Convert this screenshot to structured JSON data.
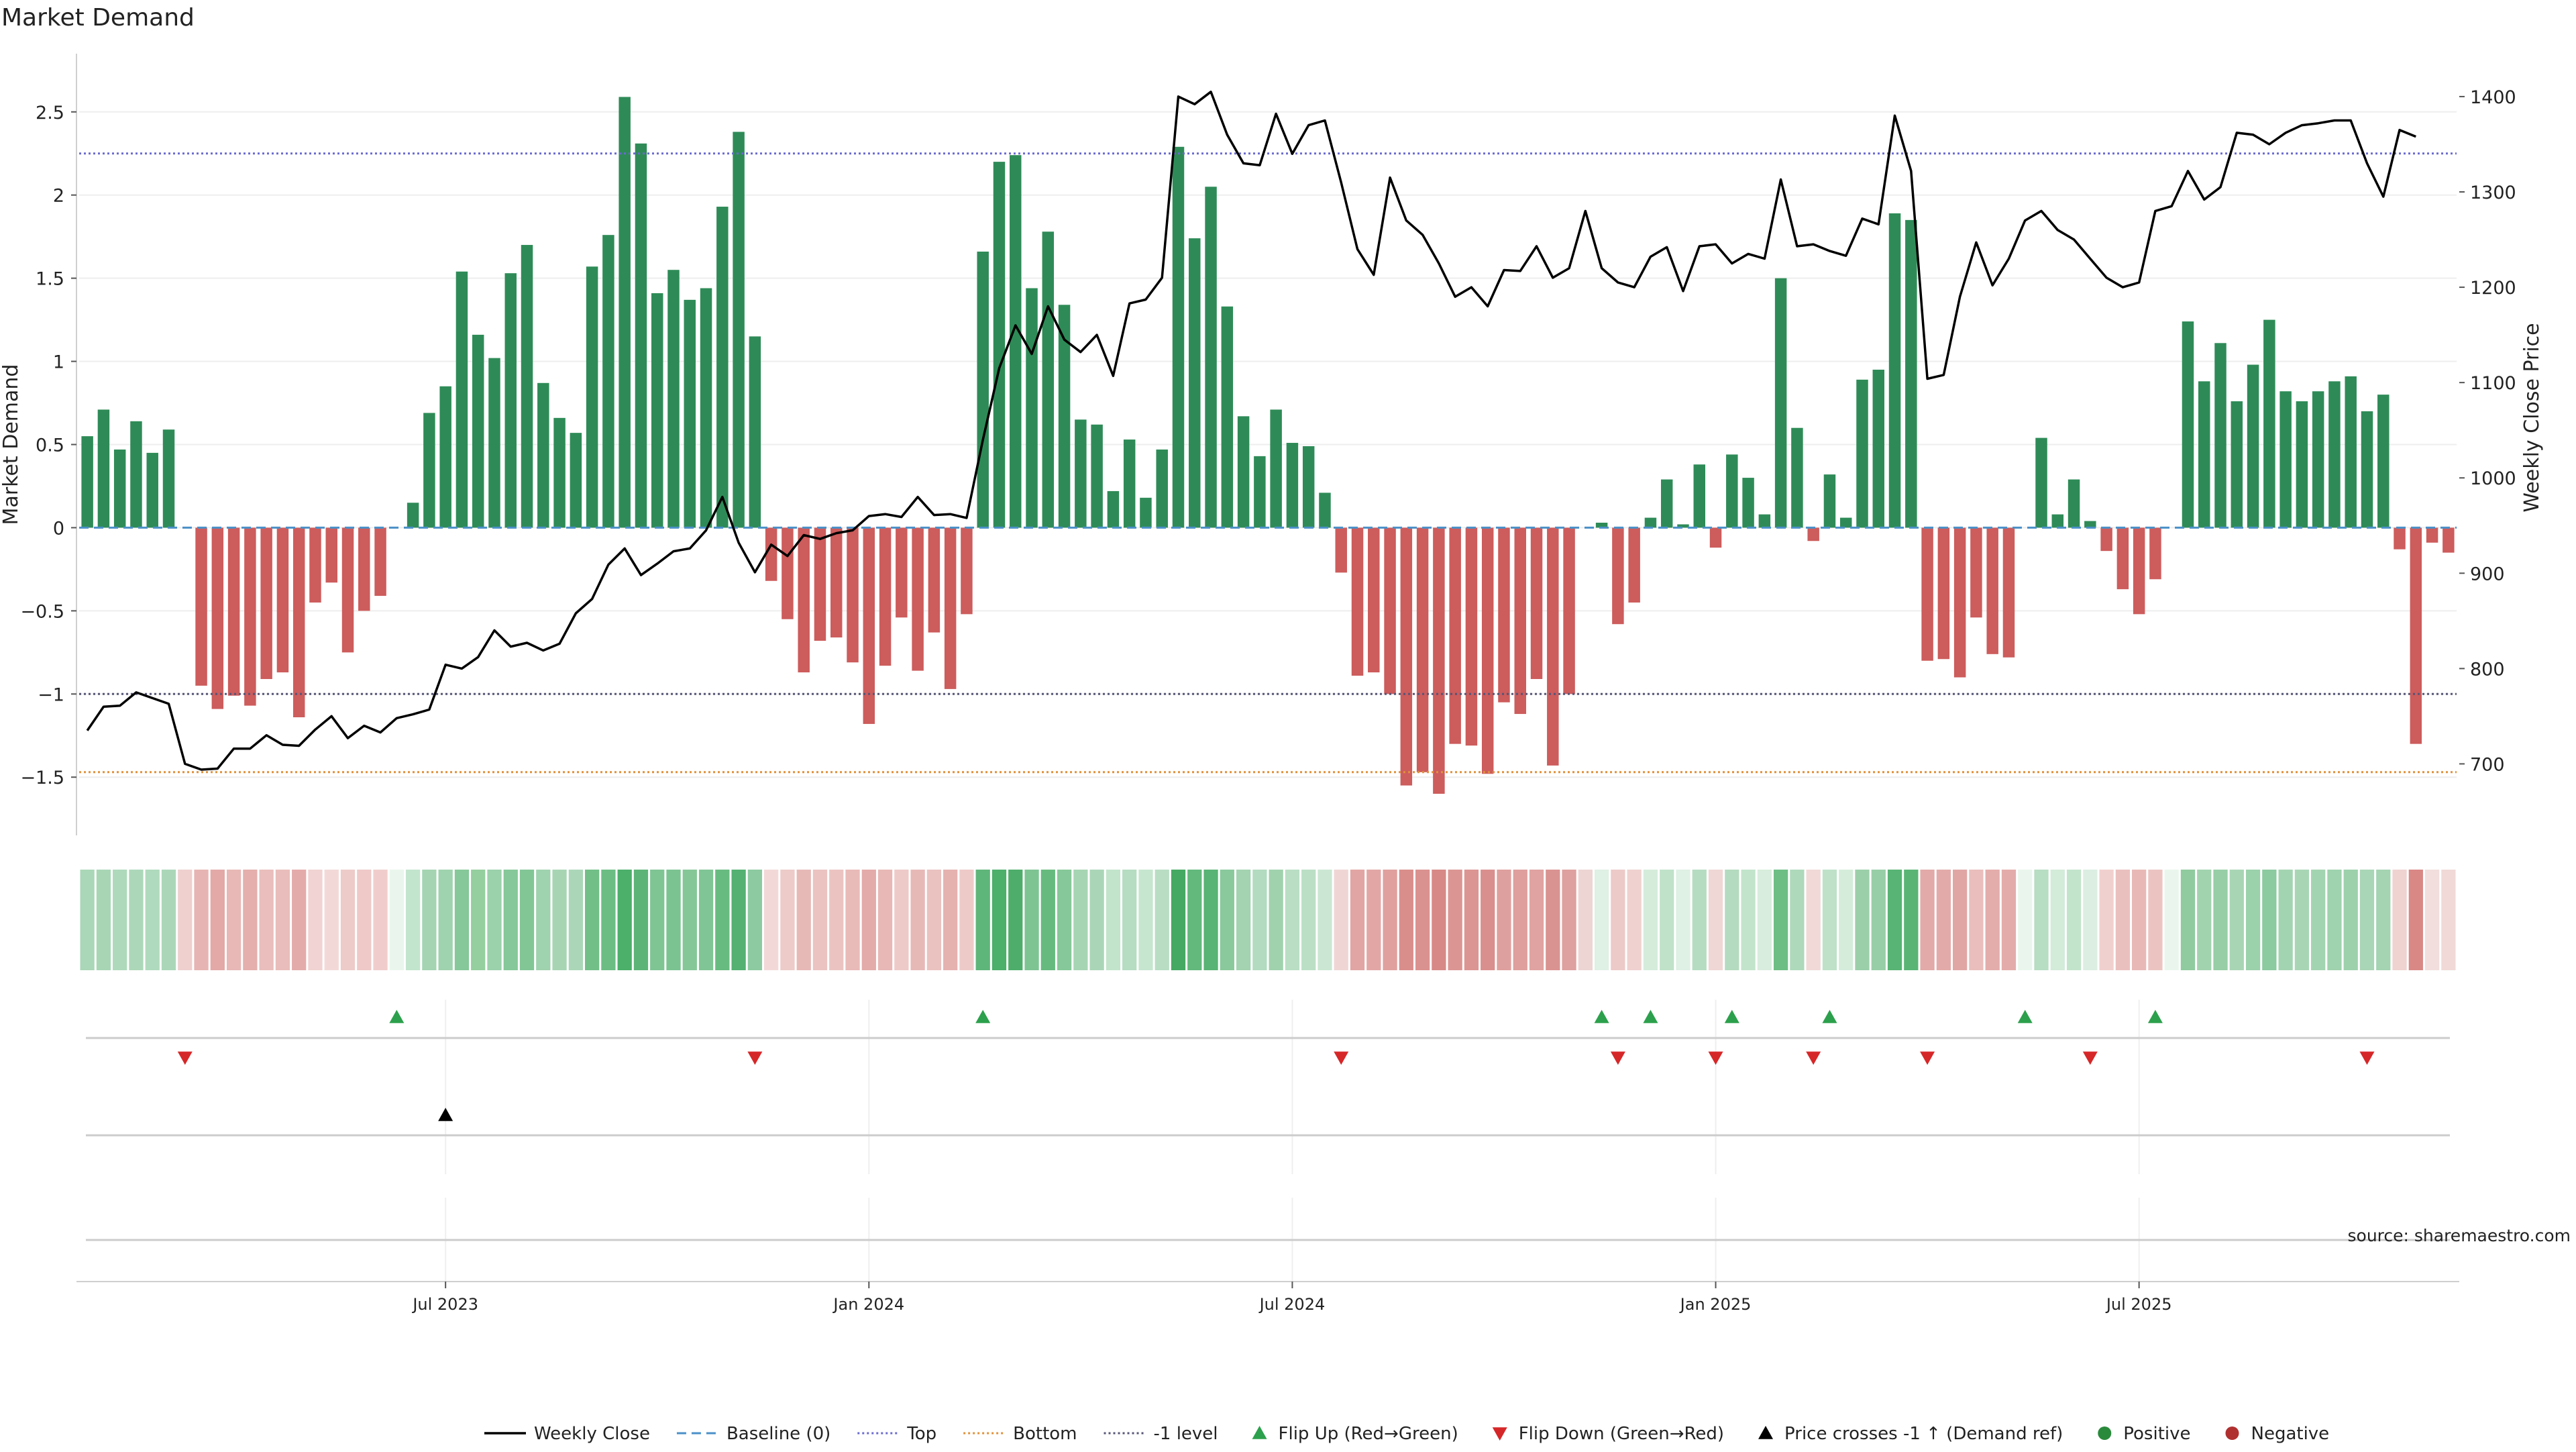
{
  "chart_data": {
    "type": "bar",
    "title": "Market Demand",
    "ylabel": "Market Demand",
    "y2label": "Weekly Close Price",
    "ylim": [
      -1.85,
      2.85
    ],
    "y2lim": [
      625,
      1445
    ],
    "yticks": [
      "2.5",
      "2",
      "1.5",
      "1",
      "0.5",
      "0",
      "−0.5",
      "−1",
      "−1.5"
    ],
    "ytick_values": [
      2.5,
      2,
      1.5,
      1,
      0.5,
      0,
      -0.5,
      -1,
      -1.5
    ],
    "y2ticks": [
      "1400",
      "1300",
      "1200",
      "1100",
      "1000",
      "900",
      "800",
      "700"
    ],
    "y2tick_values": [
      1400,
      1300,
      1200,
      1100,
      1000,
      900,
      800,
      700
    ],
    "xticks": [
      "Jul 2023",
      "Jan 2024",
      "Jul 2024",
      "Jan 2025",
      "Jul 2025"
    ],
    "xtick_index": [
      22,
      48,
      74,
      100,
      126
    ],
    "reference_lines": [
      {
        "name": "Top",
        "value": 2.25,
        "color": "#6a6ad0",
        "dash": "3,4"
      },
      {
        "name": "-1 level",
        "value": -1.0,
        "color": "#555577",
        "dash": "3,4"
      },
      {
        "name": "Bottom",
        "value": -1.47,
        "color": "#e0913a",
        "dash": "3,4"
      }
    ],
    "demand": [
      0.55,
      0.71,
      0.47,
      0.64,
      0.45,
      0.59,
      0,
      -0.95,
      -1.09,
      -1.01,
      -1.07,
      -0.91,
      -0.87,
      -1.14,
      -0.45,
      -0.33,
      -0.75,
      -0.5,
      -0.41,
      0,
      0.15,
      0.69,
      0.85,
      1.54,
      1.16,
      1.02,
      1.53,
      1.7,
      0.87,
      0.66,
      0.57,
      1.57,
      1.76,
      2.59,
      2.31,
      1.41,
      1.55,
      1.37,
      1.44,
      1.93,
      2.38,
      1.15,
      -0.32,
      -0.55,
      -0.87,
      -0.68,
      -0.66,
      -0.81,
      -1.18,
      -0.83,
      -0.54,
      -0.86,
      -0.63,
      -0.97,
      -0.52,
      1.66,
      2.2,
      2.24,
      1.44,
      1.78,
      1.34,
      0.65,
      0.62,
      0.22,
      0.53,
      0.18,
      0.47,
      2.29,
      1.74,
      2.05,
      1.33,
      0.67,
      0.43,
      0.71,
      0.51,
      0.49,
      0.21,
      -0.27,
      -0.89,
      -0.87,
      -1.0,
      -1.55,
      -1.47,
      -1.6,
      -1.3,
      -1.31,
      -1.48,
      -1.05,
      -1.12,
      -0.91,
      -1.43,
      -1.0,
      0,
      0.03,
      -0.58,
      -0.45,
      0.06,
      0.29,
      0.02,
      0.38,
      -0.12,
      0.44,
      0.3,
      0.08,
      1.5,
      0.6,
      -0.08,
      0.32,
      0.06,
      0.89,
      0.95,
      1.89,
      1.85,
      -0.8,
      -0.79,
      -0.9,
      -0.54,
      -0.76,
      -0.78,
      0,
      0.54,
      0.08,
      0.29,
      0.04,
      -0.14,
      -0.37,
      -0.52,
      -0.31,
      0,
      1.24,
      0.88,
      1.11,
      0.76,
      0.98,
      1.25,
      0.82,
      0.76,
      0.82,
      0.88,
      0.91,
      0.7,
      0.8,
      -0.13,
      -1.3,
      -0.09,
      -0.15
    ],
    "close": [
      735,
      760,
      761,
      775,
      769,
      763,
      700,
      694,
      695,
      716,
      716,
      730,
      720,
      719,
      736,
      750,
      727,
      740,
      733,
      748,
      752,
      757,
      804,
      800,
      812,
      840,
      823,
      827,
      819,
      826,
      858,
      873,
      909,
      926,
      898,
      910,
      923,
      926,
      945,
      980,
      932,
      901,
      930,
      918,
      940,
      936,
      942,
      945,
      960,
      962,
      959,
      980,
      961,
      962,
      958,
      1040,
      1115,
      1160,
      1130,
      1180,
      1145,
      1132,
      1150,
      1107,
      1183,
      1187,
      1210,
      1400,
      1392,
      1405,
      1360,
      1330,
      1328,
      1382,
      1340,
      1370,
      1375,
      1310,
      1240,
      1213,
      1315,
      1270,
      1255,
      1225,
      1190,
      1200,
      1180,
      1218,
      1217,
      1243,
      1210,
      1220,
      1280,
      1220,
      1205,
      1200,
      1232,
      1242,
      1196,
      1243,
      1245,
      1225,
      1235,
      1230,
      1313,
      1243,
      1245,
      1238,
      1233,
      1272,
      1266,
      1380,
      1322,
      1104,
      1108,
      1190,
      1247,
      1202,
      1230,
      1270,
      1280,
      1260,
      1250,
      1230,
      1210,
      1200,
      1205,
      1280,
      1285,
      1322,
      1292,
      1305,
      1362,
      1360,
      1350,
      1362,
      1370,
      1372,
      1375,
      1375,
      1330,
      1295,
      1365,
      1358
    ],
    "heat_colors": [
      "#aad7b7",
      "#a8d6b5",
      "#aed9bb",
      "#acd8b9",
      "#b0dabd",
      "#abd7b8",
      "#efd0cf",
      "#e6b5b3",
      "#e2a9a7",
      "#e7b8b6",
      "#e4afac",
      "#e9bebc",
      "#e9bdbb",
      "#e3abaa",
      "#f0d3d2",
      "#f2d9d8",
      "#edcbc9",
      "#eec9c8",
      "#f0cdcc",
      "#eaf6ed",
      "#c2e5cd",
      "#a4d4b2",
      "#9fd2ae",
      "#86c899",
      "#95ce9f",
      "#9bd1ab",
      "#86c899",
      "#82c696",
      "#9fd2ae",
      "#a7d5b4",
      "#abd7b8",
      "#72bf88",
      "#6cbd84",
      "#4caf6a",
      "#5cb577",
      "#7fc594",
      "#7bc391",
      "#85c797",
      "#80c595",
      "#68bb80",
      "#54b172",
      "#8dcaa1",
      "#f2d9d8",
      "#eccbc9",
      "#e6b9b7",
      "#ebc3c1",
      "#ebc4c2",
      "#e8bab8",
      "#e3aba9",
      "#e7b8b6",
      "#edcac8",
      "#e6b9b7",
      "#eac2c0",
      "#e5b2b0",
      "#edcac8",
      "#5fb67a",
      "#4caf6a",
      "#4ead6b",
      "#7ec493",
      "#66ba7e",
      "#86c899",
      "#a6d5b3",
      "#aad6b7",
      "#c2e4cb",
      "#b6dcc2",
      "#c6e6cf",
      "#b8ddc3",
      "#45a963",
      "#63b87c",
      "#58b474",
      "#8ac99c",
      "#a3d3b0",
      "#b2dbbf",
      "#a0d2ae",
      "#b9dec4",
      "#bbdfc5",
      "#cbe7d3",
      "#efd6d5",
      "#e1a5a3",
      "#e2a7a5",
      "#dfa09e",
      "#d98e8c",
      "#da9290",
      "#d78987",
      "#db9694",
      "#db9593",
      "#d98f8d",
      "#dea09e",
      "#de9f9d",
      "#e0a3a1",
      "#d99391",
      "#dea19f",
      "#ecd5d3",
      "#dff0e4",
      "#eccac8",
      "#efd1cf",
      "#d5ecdb",
      "#bfe2c9",
      "#dff0e4",
      "#b5dcc1",
      "#efd7d5",
      "#b4dbbf",
      "#c2e4cb",
      "#d8eddd",
      "#6dbe85",
      "#aed9bb",
      "#f0d9d7",
      "#bee1c8",
      "#d5ecdb",
      "#9bcfa9",
      "#98cea7",
      "#58b474",
      "#5ab575",
      "#e2aaa8",
      "#e2aba9",
      "#e0a6a4",
      "#e9bebc",
      "#e3adab",
      "#e3acaa",
      "#eaf6ed",
      "#b7ddc2",
      "#d3ebd9",
      "#c2e4cb",
      "#dbeee1",
      "#f0d0ce",
      "#eac0be",
      "#e8b8b6",
      "#ebc4c2",
      "#eaf6ed",
      "#8fcb9f",
      "#a2d3af",
      "#97cea6",
      "#a8d6b5",
      "#9bd1ab",
      "#8ccaa0",
      "#a3d4b1",
      "#a8d6b5",
      "#a3d4b1",
      "#9fd2ae",
      "#9dd1ac",
      "#a9d6b6",
      "#a4d4b2",
      "#efd3d1",
      "#d98886",
      "#f1dedd",
      "#f0d9d7"
    ],
    "flip_up_index": [
      19,
      55,
      93,
      96,
      101,
      107,
      119,
      127
    ],
    "flip_down_index": [
      6,
      41,
      77,
      94,
      100,
      106,
      113,
      123,
      140
    ],
    "price_cross_index": [
      22
    ],
    "legend": [
      {
        "label": "Weekly Close",
        "kind": "line",
        "color": "#000000"
      },
      {
        "label": "Baseline (0)",
        "kind": "dash",
        "color": "#4a90c8"
      },
      {
        "label": "Top",
        "kind": "dot",
        "color": "#6a6ad0"
      },
      {
        "label": "Bottom",
        "kind": "dot",
        "color": "#e0913a"
      },
      {
        "label": "-1 level",
        "kind": "dot",
        "color": "#555577"
      },
      {
        "label": "Flip Up (Red→Green)",
        "kind": "tri-up",
        "color": "#2ca04c"
      },
      {
        "label": "Flip Down (Green→Red)",
        "kind": "tri-down",
        "color": "#d62728"
      },
      {
        "label": "Price crosses -1 ↑ (Demand ref)",
        "kind": "tri-up",
        "color": "#000000"
      },
      {
        "label": "Positive",
        "kind": "circle",
        "color": "#2a8a3c"
      },
      {
        "label": "Negative",
        "kind": "circle",
        "color": "#b03030"
      }
    ],
    "colors": {
      "positive_bar": "#2e8b57",
      "negative_bar": "#cd5c5c",
      "line": "#000000"
    }
  },
  "source_note": "source: sharemaestro.com"
}
